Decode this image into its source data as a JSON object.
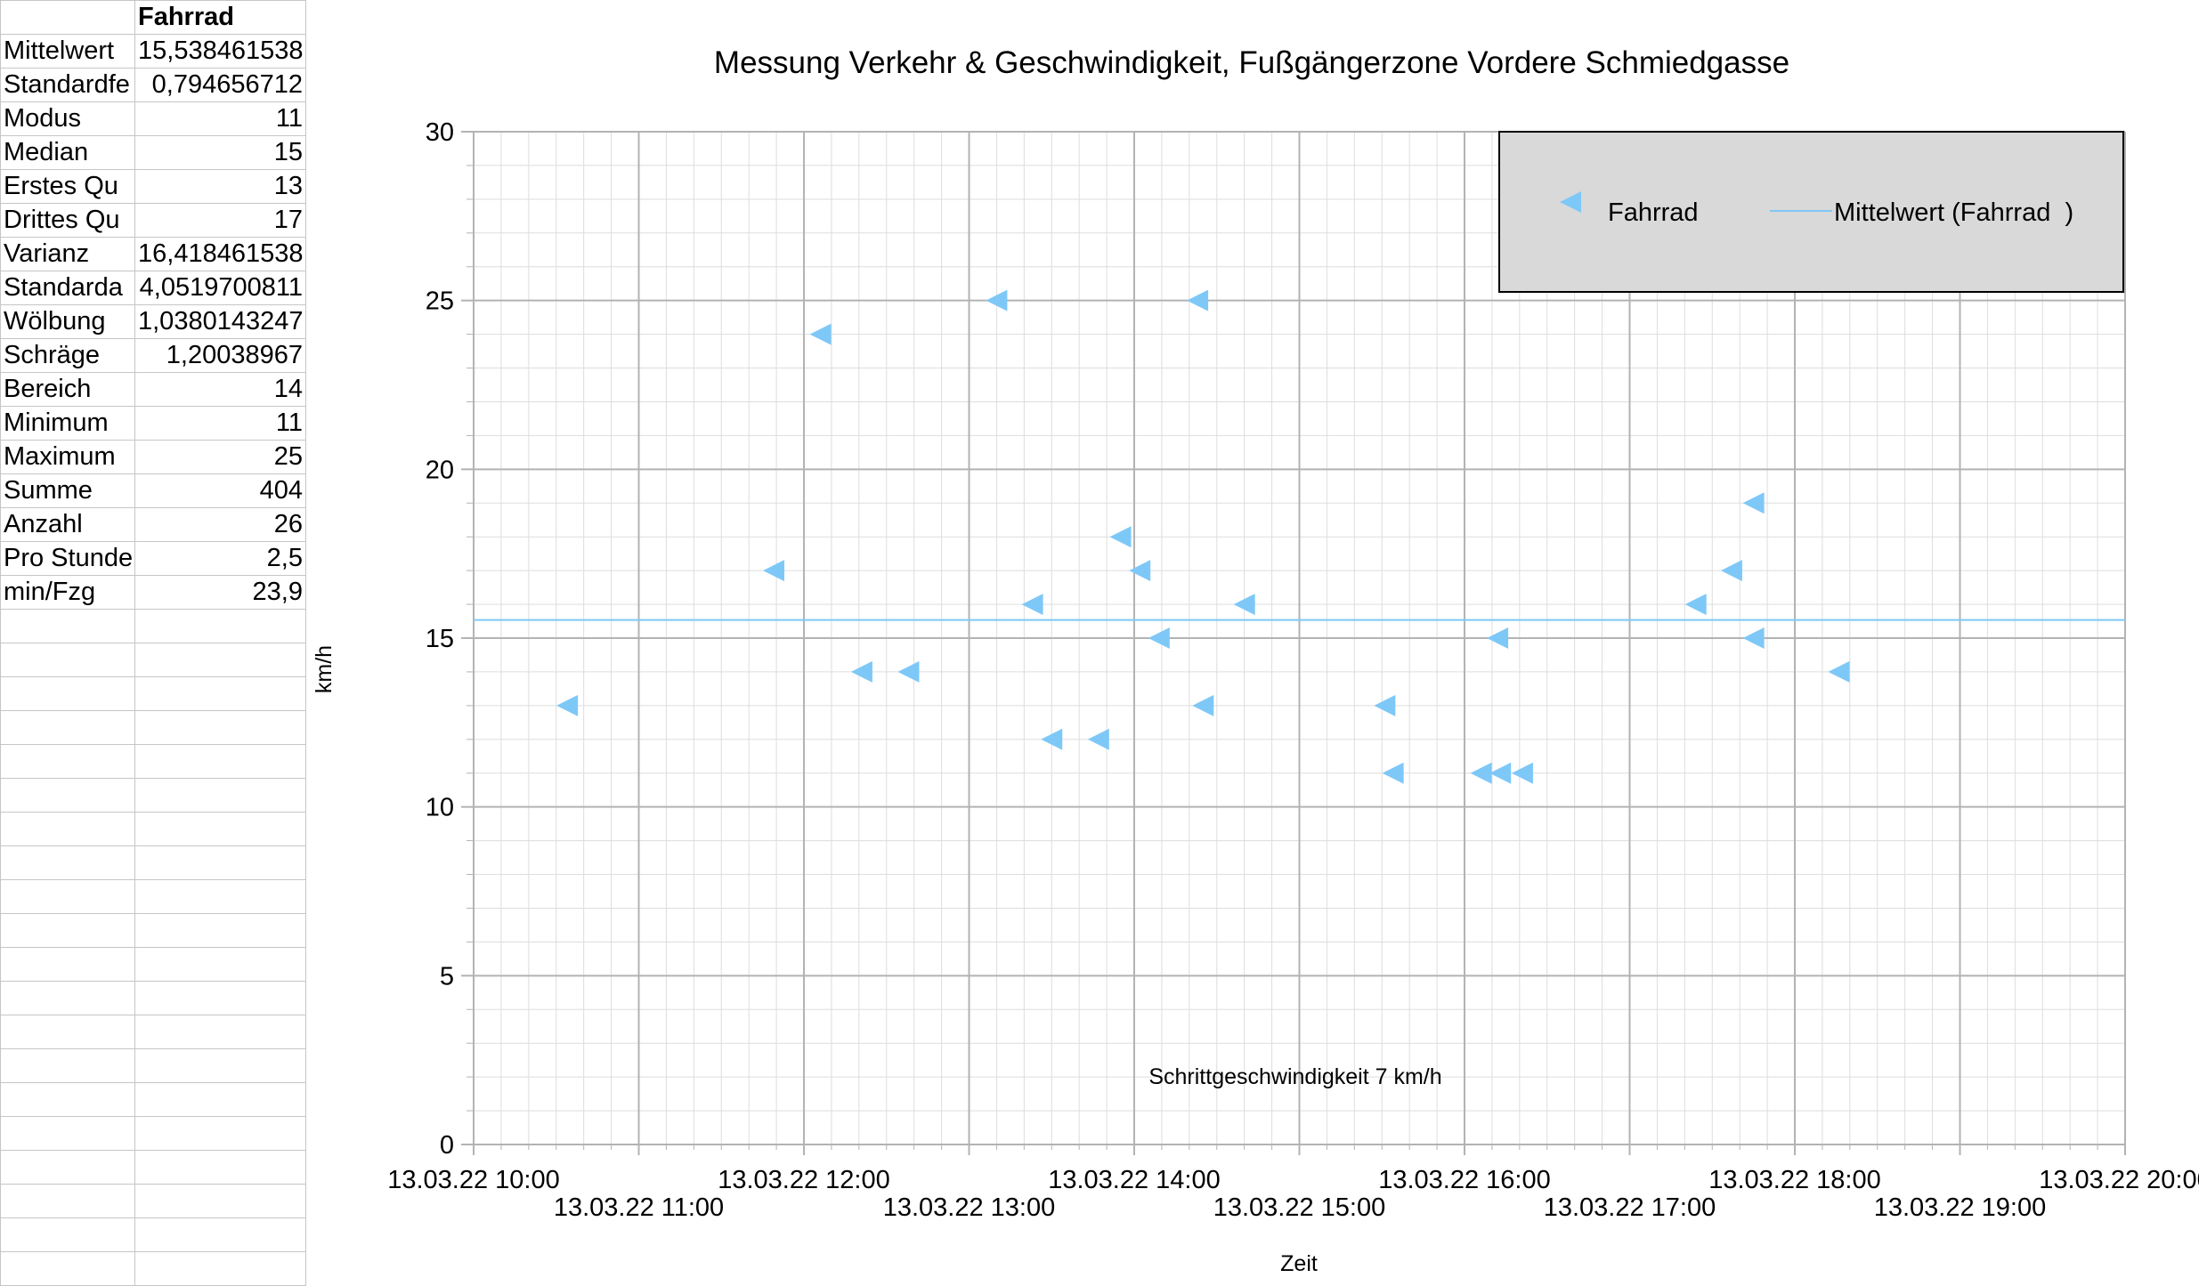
{
  "sheet": {
    "header": "Fahrrad",
    "rows": [
      {
        "label": "Mittelwert",
        "value": "15,538461538"
      },
      {
        "label": "Standardfe",
        "value": "0,794656712"
      },
      {
        "label": "Modus",
        "value": "11"
      },
      {
        "label": "Median",
        "value": "15"
      },
      {
        "label": "Erstes Qu",
        "value": "13"
      },
      {
        "label": "Drittes Qu",
        "value": "17"
      },
      {
        "label": "Varianz",
        "value": "16,418461538"
      },
      {
        "label": "Standarda",
        "value": "4,0519700811"
      },
      {
        "label": "Wölbung",
        "value": "1,0380143247"
      },
      {
        "label": "Schräge",
        "value": "1,20038967"
      },
      {
        "label": "Bereich",
        "value": "14"
      },
      {
        "label": "Minimum",
        "value": "11"
      },
      {
        "label": "Maximum",
        "value": "25"
      },
      {
        "label": "Summe",
        "value": "404"
      },
      {
        "label": "Anzahl",
        "value": "26"
      },
      {
        "label": "Pro Stunde",
        "value": "2,5"
      },
      {
        "label": "min/Fzg",
        "value": "23,9"
      }
    ],
    "empty_rows": 20
  },
  "chart_data": {
    "type": "scatter",
    "title": "Messung Verkehr & Geschwindigkeit, Fußgängerzone Vordere Schmiedgasse",
    "xlabel": "Zeit",
    "ylabel": "km/h",
    "annotation": "Schrittgeschwindigkeit 7 km/h",
    "xlim": [
      "13.03.22 10:00",
      "13.03.22 20:00"
    ],
    "ylim": [
      0,
      30
    ],
    "x_ticks": [
      "13.03.22 10:00",
      "13.03.22 11:00",
      "13.03.22 12:00",
      "13.03.22 13:00",
      "13.03.22 14:00",
      "13.03.22 15:00",
      "13.03.22 16:00",
      "13.03.22 17:00",
      "13.03.22 18:00",
      "13.03.22 19:00",
      "13.03.22 20:00"
    ],
    "y_ticks": [
      "0",
      "5",
      "10",
      "15",
      "20",
      "25",
      "30"
    ],
    "grid": true,
    "legend_position": "top-right",
    "series": [
      {
        "name": "Fahrrad",
        "marker": "triangle-left",
        "color": "#7ec8f8",
        "points": [
          {
            "x": "13.03.22 10:34",
            "y": 13
          },
          {
            "x": "13.03.22 11:49",
            "y": 17
          },
          {
            "x": "13.03.22 12:06",
            "y": 24
          },
          {
            "x": "13.03.22 12:21",
            "y": 14
          },
          {
            "x": "13.03.22 12:38",
            "y": 14
          },
          {
            "x": "13.03.22 13:10",
            "y": 25
          },
          {
            "x": "13.03.22 13:23",
            "y": 16
          },
          {
            "x": "13.03.22 13:30",
            "y": 12
          },
          {
            "x": "13.03.22 13:47",
            "y": 12
          },
          {
            "x": "13.03.22 13:55",
            "y": 18
          },
          {
            "x": "13.03.22 14:02",
            "y": 17
          },
          {
            "x": "13.03.22 14:09",
            "y": 15
          },
          {
            "x": "13.03.22 14:23",
            "y": 25
          },
          {
            "x": "13.03.22 14:25",
            "y": 13
          },
          {
            "x": "13.03.22 14:40",
            "y": 16
          },
          {
            "x": "13.03.22 15:31",
            "y": 13
          },
          {
            "x": "13.03.22 15:34",
            "y": 11
          },
          {
            "x": "13.03.22 16:06",
            "y": 11
          },
          {
            "x": "13.03.22 16:12",
            "y": 15
          },
          {
            "x": "13.03.22 16:13",
            "y": 11
          },
          {
            "x": "13.03.22 16:21",
            "y": 11
          },
          {
            "x": "13.03.22 17:24",
            "y": 16
          },
          {
            "x": "13.03.22 17:37",
            "y": 17
          },
          {
            "x": "13.03.22 17:45",
            "y": 19
          },
          {
            "x": "13.03.22 17:45",
            "y": 15
          },
          {
            "x": "13.03.22 18:16",
            "y": 14
          }
        ]
      },
      {
        "name": "Mittelwert (Fahrrad  )",
        "type": "line",
        "color": "#7ec8f8",
        "y": 15.538461538
      }
    ]
  }
}
